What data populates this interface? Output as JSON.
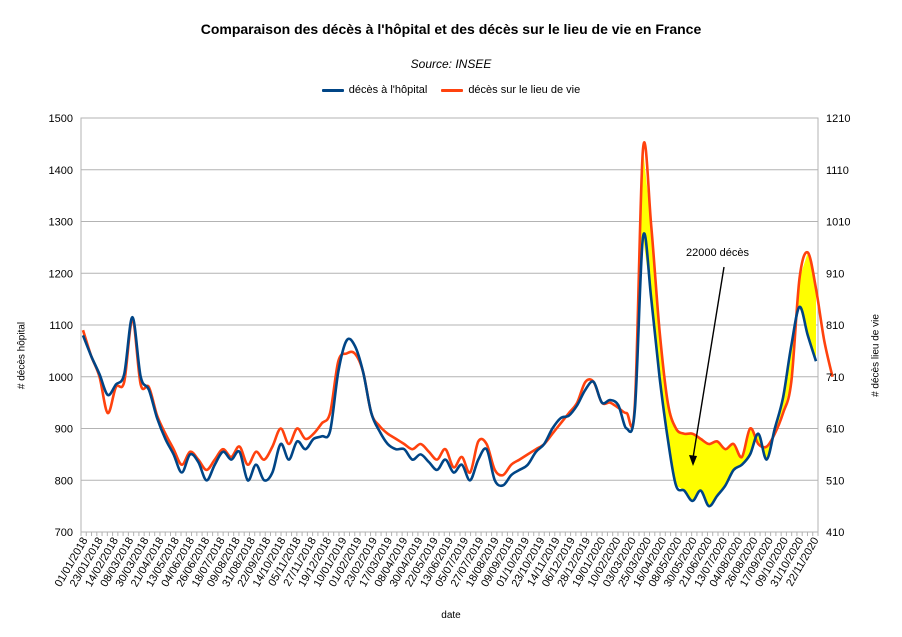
{
  "chart_data": {
    "type": "line",
    "title": "Comparaison des décès à l'hôpital et des décès sur le lieu de vie en France",
    "subtitle": "Source: INSEE",
    "xlabel": "date",
    "ylabel_left": "# décès hôpital",
    "ylabel_right": "# décès lieu de vie",
    "ylim_left": [
      700,
      1500
    ],
    "ylim_right": [
      410,
      1210
    ],
    "yticks_left": [
      "700",
      "800",
      "900",
      "1000",
      "1100",
      "1200",
      "1300",
      "1400",
      "1500"
    ],
    "yticks_right": [
      "410",
      "510",
      "610",
      "710",
      "810",
      "910",
      "1010",
      "1110",
      "1210"
    ],
    "grid": true,
    "legend_position": "top",
    "x_tick_labels": [
      "01/01/2018",
      "23/01/2018",
      "14/02/2018",
      "08/03/2018",
      "30/03/2018",
      "21/04/2018",
      "13/05/2018",
      "04/06/2018",
      "26/06/2018",
      "18/07/2018",
      "09/08/2018",
      "31/08/2018",
      "22/09/2018",
      "14/10/2018",
      "05/11/2018",
      "27/11/2018",
      "19/12/2018",
      "10/01/2019",
      "01/02/2019",
      "23/02/2019",
      "17/03/2019",
      "08/04/2019",
      "30/04/2019",
      "22/05/2019",
      "13/06/2019",
      "05/07/2019",
      "27/07/2019",
      "18/08/2019",
      "09/09/2019",
      "01/10/2019",
      "23/10/2019",
      "14/11/2019",
      "06/12/2019",
      "28/12/2019",
      "19/01/2020",
      "10/02/2020",
      "03/03/2020",
      "25/03/2020",
      "16/04/2020",
      "08/05/2020",
      "30/05/2020",
      "21/06/2020",
      "13/07/2020",
      "04/08/2020",
      "26/08/2020",
      "17/09/2020",
      "09/10/2020",
      "31/10/2020",
      "22/11/2020"
    ],
    "annotation": {
      "text": "22000 décès"
    },
    "series": [
      {
        "name": "décès à l'hôpital",
        "color": "#004586",
        "axis": "left",
        "values": [
          1080,
          1040,
          1005,
          965,
          985,
          1005,
          1115,
          1000,
          975,
          920,
          880,
          850,
          815,
          850,
          835,
          800,
          830,
          855,
          840,
          855,
          800,
          830,
          800,
          815,
          870,
          840,
          875,
          860,
          880,
          885,
          895,
          1010,
          1070,
          1060,
          1010,
          930,
          895,
          870,
          860,
          860,
          840,
          850,
          835,
          820,
          840,
          815,
          830,
          800,
          840,
          860,
          800,
          790,
          810,
          820,
          830,
          855,
          870,
          900,
          920,
          925,
          945,
          975,
          990,
          950,
          955,
          945,
          900,
          935,
          1270,
          1150,
          1000,
          880,
          790,
          780,
          760,
          780,
          750,
          770,
          790,
          820,
          830,
          850,
          890,
          840,
          900,
          960,
          1060,
          1135,
          1080,
          1030
        ]
      },
      {
        "name": "décès sur le lieu de vie",
        "color": "#ff420e",
        "axis": "right",
        "values": [
          800,
          750,
          710,
          640,
          690,
          700,
          820,
          695,
          690,
          635,
          600,
          570,
          540,
          565,
          550,
          530,
          550,
          570,
          555,
          575,
          540,
          565,
          550,
          575,
          610,
          580,
          610,
          590,
          600,
          620,
          640,
          740,
          755,
          755,
          720,
          640,
          615,
          600,
          590,
          580,
          570,
          580,
          565,
          550,
          570,
          535,
          555,
          525,
          585,
          580,
          530,
          520,
          540,
          550,
          560,
          570,
          580,
          600,
          620,
          640,
          660,
          700,
          700,
          660,
          660,
          650,
          640,
          655,
          1150,
          1000,
          800,
          660,
          610,
          600,
          600,
          590,
          580,
          585,
          570,
          580,
          555,
          610,
          580,
          575,
          600,
          640,
          700,
          900,
          950,
          880,
          780,
          710
        ]
      }
    ]
  }
}
